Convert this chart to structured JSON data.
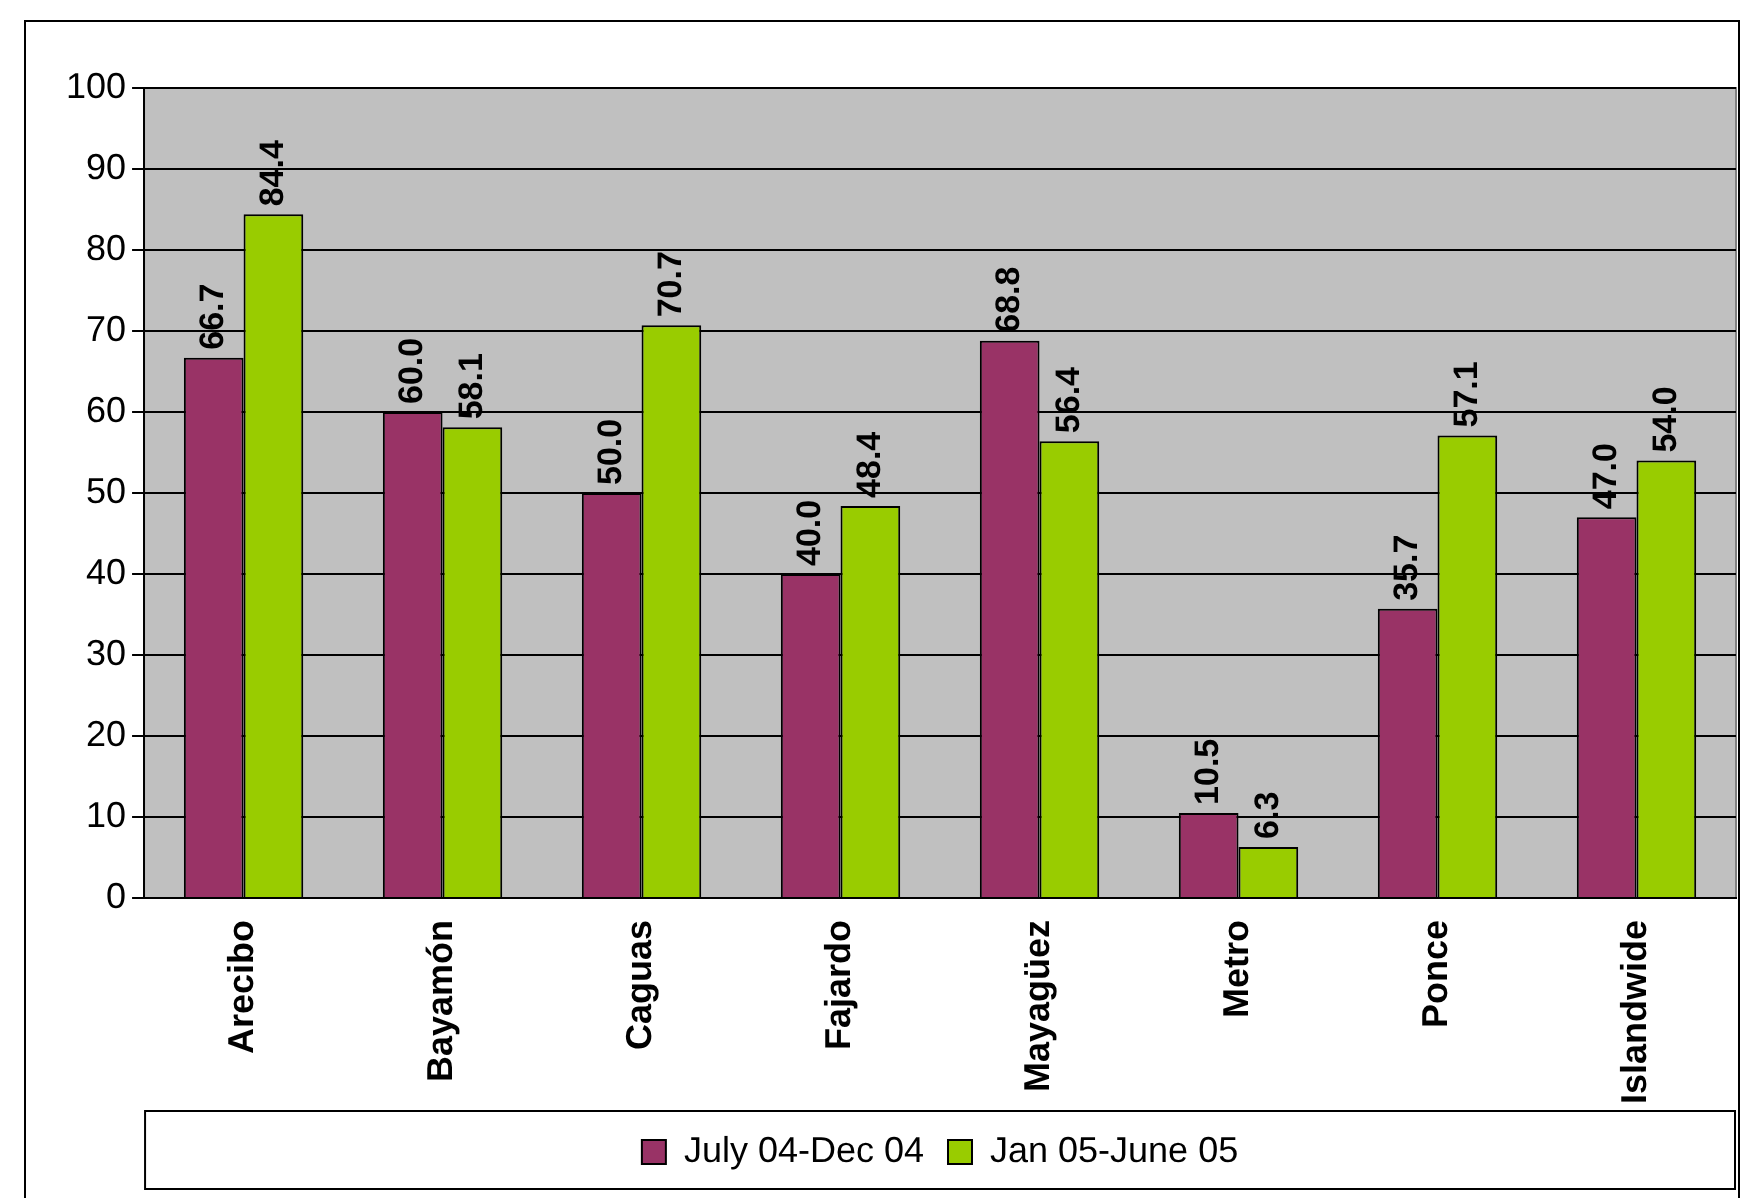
{
  "chart_data": {
    "type": "bar",
    "categories": [
      "Arecibo",
      "Bayamón",
      "Caguas",
      "Fajardo",
      "Mayagüez",
      "Metro",
      "Ponce",
      "Islandwide"
    ],
    "series": [
      {
        "name": "July 04-Dec 04",
        "color": "#993366",
        "values": [
          66.7,
          60.0,
          50.0,
          40.0,
          68.8,
          10.5,
          35.7,
          47.0
        ],
        "value_labels": [
          "66.7",
          "60.0",
          "50.0",
          "40.0",
          "68.8",
          "10.5",
          "35.7",
          "47.0"
        ]
      },
      {
        "name": "Jan 05-June 05",
        "color": "#99cc00",
        "values": [
          84.4,
          58.1,
          70.7,
          48.4,
          56.4,
          6.3,
          57.1,
          54.0
        ],
        "value_labels": [
          "84.4",
          "58.1",
          "70.7",
          "48.4",
          "56.4",
          "6.3",
          "57.1",
          "54.0"
        ]
      }
    ],
    "ylim": [
      0,
      100
    ],
    "yticks": [
      0,
      10,
      20,
      30,
      40,
      50,
      60,
      70,
      80,
      90,
      100
    ],
    "grid": "y",
    "legend": "bottom"
  }
}
